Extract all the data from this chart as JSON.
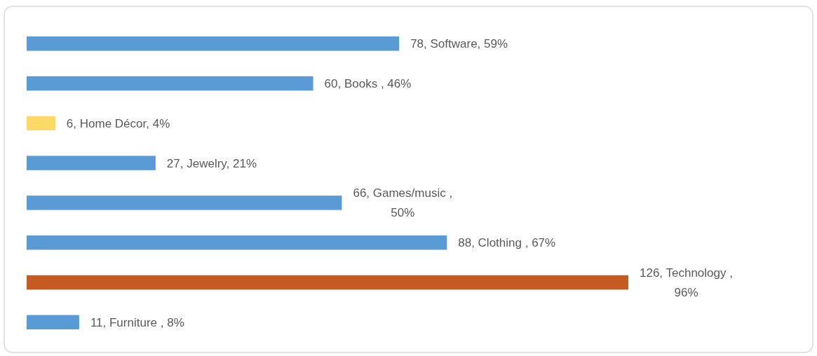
{
  "chart_data": {
    "type": "bar",
    "orientation": "horizontal",
    "categories": [
      null,
      null,
      null,
      null,
      null,
      null,
      null,
      null
    ],
    "values": [
      78,
      60,
      6,
      27,
      66,
      88,
      126,
      11
    ],
    "colors": [
      "#5b9bd5",
      "#5b9bd5",
      "#ffd966",
      "#5b9bd5",
      "#5b9bd5",
      "#5b9bd5",
      "#c55a22",
      "#5b9bd5"
    ],
    "value_labels": [
      "78, Software, 59%",
      "60, Books , 46%",
      "6, Home Décor, 4%",
      "27, Jewelry, 21%",
      "66, Games/music , 50%",
      "88, Clothing , 67%",
      "126, Technology , 96%",
      "11, Furniture , 8%"
    ]
  }
}
